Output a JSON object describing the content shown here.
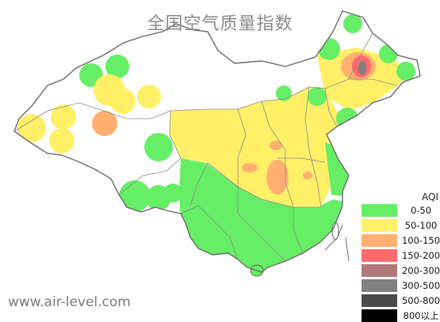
{
  "map": {
    "title": "全国空气质量指数",
    "watermark": "www.air-level.com"
  },
  "legend": {
    "title": "AQI",
    "items": [
      {
        "label": "0-50",
        "color": "#66ee66"
      },
      {
        "label": "50-100",
        "color": "#fff068"
      },
      {
        "label": "100-150",
        "color": "#ffb070"
      },
      {
        "label": "150-200",
        "color": "#ff6a6a"
      },
      {
        "label": "200-300",
        "color": "#b07878"
      },
      {
        "label": "300-500",
        "color": "#808080"
      },
      {
        "label": "500-800",
        "color": "#4a4a4a"
      },
      {
        "label": "800以上",
        "color": "#000000"
      }
    ]
  }
}
